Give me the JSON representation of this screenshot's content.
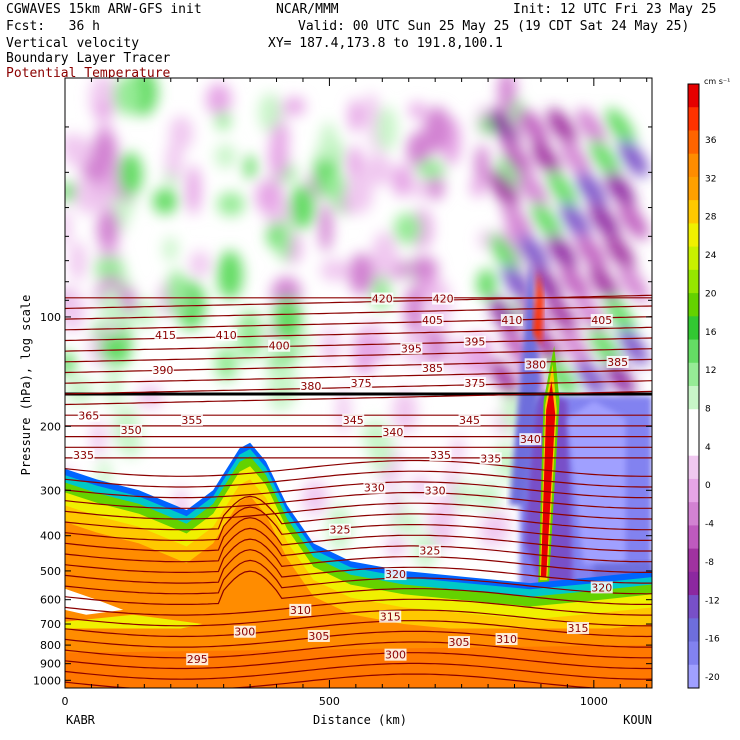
{
  "header": {
    "model_line": "CGWAVES 15km ARW-GFS init",
    "org": "NCAR/MMM",
    "init": "Init: 12 UTC Fri 23 May 25",
    "fcst": "Fcst:   36 h",
    "valid": "Valid: 00 UTC Sun 25 May 25 (19 CDT Sat 24 May 25)",
    "field1": "Vertical velocity",
    "field2": "Boundary Layer Tracer",
    "field3": "Potential Temperature",
    "xy": "XY= 187.4,173.8 to 191.8,100.1"
  },
  "chart_data": {
    "type": "heatmap",
    "xlabel": "Distance (km)",
    "ylabel": "Pressure (hPa), log scale",
    "x_ticks": [
      0,
      500,
      1000
    ],
    "y_ticks": [
      100,
      200,
      300,
      400,
      500,
      600,
      700,
      800,
      900,
      1000
    ],
    "xlim": [
      0,
      1110
    ],
    "ylim": [
      1050,
      22
    ],
    "y_scale": "log",
    "x_end_labels": {
      "left": "KABR",
      "right": "KOUN"
    },
    "colorbar": {
      "unit": "cm s⁻¹",
      "labels": [
        36,
        32,
        28,
        24,
        20,
        16,
        12,
        8,
        4,
        0,
        -4,
        -8,
        -12,
        -16,
        -20
      ],
      "colors": [
        "#e60000",
        "#ff3200",
        "#ff6400",
        "#ff8c00",
        "#ffa000",
        "#ffc800",
        "#f0f000",
        "#c8f000",
        "#96e600",
        "#64d200",
        "#32c832",
        "#64dc64",
        "#96eb96",
        "#c8f5c8",
        "#ffffff",
        "#ffffff",
        "#f0c8f0",
        "#e6a5e6",
        "#d282d2",
        "#be5abe",
        "#a032a0",
        "#8c28a0",
        "#7850c8",
        "#6e6edc",
        "#8282f0",
        "#a0a0ff"
      ]
    },
    "theta_labels": [
      {
        "x": 190,
        "p": 112,
        "v": "415"
      },
      {
        "x": 305,
        "p": 112,
        "v": "410"
      },
      {
        "x": 405,
        "p": 120,
        "v": "400"
      },
      {
        "x": 600,
        "p": 89,
        "v": "420"
      },
      {
        "x": 715,
        "p": 89,
        "v": "420"
      },
      {
        "x": 695,
        "p": 102,
        "v": "405"
      },
      {
        "x": 655,
        "p": 122,
        "v": "395"
      },
      {
        "x": 775,
        "p": 117,
        "v": "395"
      },
      {
        "x": 845,
        "p": 102,
        "v": "410"
      },
      {
        "x": 1015,
        "p": 102,
        "v": "405"
      },
      {
        "x": 185,
        "p": 140,
        "v": "390"
      },
      {
        "x": 695,
        "p": 138,
        "v": "385"
      },
      {
        "x": 560,
        "p": 152,
        "v": "375"
      },
      {
        "x": 775,
        "p": 152,
        "v": "375"
      },
      {
        "x": 465,
        "p": 155,
        "v": "380"
      },
      {
        "x": 890,
        "p": 135,
        "v": "380"
      },
      {
        "x": 1045,
        "p": 133,
        "v": "385"
      },
      {
        "x": 45,
        "p": 187,
        "v": "365"
      },
      {
        "x": 125,
        "p": 205,
        "v": "350"
      },
      {
        "x": 240,
        "p": 192,
        "v": "355"
      },
      {
        "x": 545,
        "p": 192,
        "v": "345"
      },
      {
        "x": 620,
        "p": 207,
        "v": "340"
      },
      {
        "x": 765,
        "p": 192,
        "v": "345"
      },
      {
        "x": 880,
        "p": 217,
        "v": "340"
      },
      {
        "x": 35,
        "p": 240,
        "v": "335"
      },
      {
        "x": 710,
        "p": 240,
        "v": "335"
      },
      {
        "x": 805,
        "p": 245,
        "v": "335"
      },
      {
        "x": 585,
        "p": 295,
        "v": "330"
      },
      {
        "x": 700,
        "p": 300,
        "v": "330"
      },
      {
        "x": 520,
        "p": 385,
        "v": "325"
      },
      {
        "x": 690,
        "p": 440,
        "v": "325"
      },
      {
        "x": 625,
        "p": 510,
        "v": "320"
      },
      {
        "x": 1015,
        "p": 555,
        "v": "320"
      },
      {
        "x": 445,
        "p": 640,
        "v": "310"
      },
      {
        "x": 615,
        "p": 668,
        "v": "315"
      },
      {
        "x": 970,
        "p": 718,
        "v": "315"
      },
      {
        "x": 340,
        "p": 735,
        "v": "300"
      },
      {
        "x": 480,
        "p": 755,
        "v": "305"
      },
      {
        "x": 745,
        "p": 785,
        "v": "305"
      },
      {
        "x": 835,
        "p": 770,
        "v": "310"
      },
      {
        "x": 625,
        "p": 850,
        "v": "300"
      },
      {
        "x": 250,
        "p": 875,
        "v": "295"
      }
    ]
  }
}
